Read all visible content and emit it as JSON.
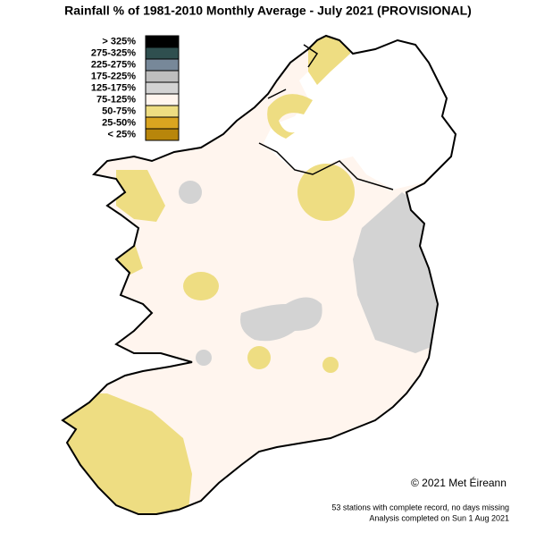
{
  "title": "Rainfall % of 1981-2010 Monthly Average - July 2021 (PROVISIONAL)",
  "legend": [
    {
      "label": "> 325%",
      "color": "#000000"
    },
    {
      "label": "275-325%",
      "color": "#2f4f4f"
    },
    {
      "label": "225-275%",
      "color": "#778899"
    },
    {
      "label": "175-225%",
      "color": "#bebebe"
    },
    {
      "label": "125-175%",
      "color": "#d3d3d3"
    },
    {
      "label": "75-125%",
      "color": "#fff5ee"
    },
    {
      "label": "50-75%",
      "color": "#eedd82"
    },
    {
      "label": "25-50%",
      "color": "#daa520"
    },
    {
      "label": "< 25%",
      "color": "#b8860b"
    }
  ],
  "copyright": "© 2021 Met Éireann",
  "notes": [
    "53 stations with complete record, no days missing",
    "Analysis completed on Sun  1 Aug 2021"
  ]
}
